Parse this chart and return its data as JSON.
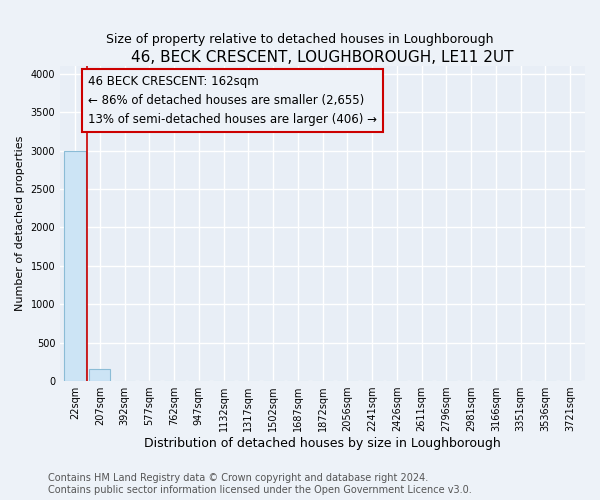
{
  "title": "46, BECK CRESCENT, LOUGHBOROUGH, LE11 2UT",
  "subtitle": "Size of property relative to detached houses in Loughborough",
  "xlabel": "Distribution of detached houses by size in Loughborough",
  "ylabel": "Number of detached properties",
  "categories": [
    "22sqm",
    "207sqm",
    "392sqm",
    "577sqm",
    "762sqm",
    "947sqm",
    "1132sqm",
    "1317sqm",
    "1502sqm",
    "1687sqm",
    "1872sqm",
    "2056sqm",
    "2241sqm",
    "2426sqm",
    "2611sqm",
    "2796sqm",
    "2981sqm",
    "3166sqm",
    "3351sqm",
    "3536sqm",
    "3721sqm"
  ],
  "values": [
    3000,
    155,
    0,
    0,
    0,
    0,
    0,
    0,
    0,
    0,
    0,
    0,
    0,
    0,
    0,
    0,
    0,
    0,
    0,
    0,
    0
  ],
  "bar_color": "#cce4f5",
  "bar_edge_color": "#8bbcd6",
  "property_line_x": 0.5,
  "property_line_color": "#cc0000",
  "annotation_line1": "46 BECK CRESCENT: 162sqm",
  "annotation_line2": "← 86% of detached houses are smaller (2,655)",
  "annotation_line3": "13% of semi-detached houses are larger (406) →",
  "annotation_color": "#cc0000",
  "ylim": [
    0,
    4100
  ],
  "yticks": [
    0,
    500,
    1000,
    1500,
    2000,
    2500,
    3000,
    3500,
    4000
  ],
  "footer": "Contains HM Land Registry data © Crown copyright and database right 2024.\nContains public sector information licensed under the Open Government Licence v3.0.",
  "background_color": "#edf2f8",
  "plot_bg_color": "#e8eef6",
  "grid_color": "#ffffff",
  "title_fontsize": 11,
  "subtitle_fontsize": 9,
  "xlabel_fontsize": 9,
  "ylabel_fontsize": 8,
  "tick_fontsize": 7,
  "annotation_fontsize": 8.5,
  "footer_fontsize": 7
}
